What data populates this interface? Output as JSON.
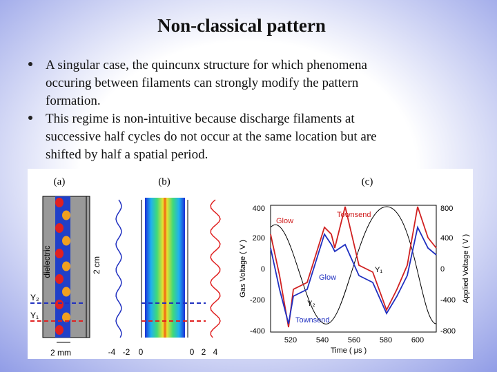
{
  "title": "Non-classical pattern",
  "bullets": [
    [
      "A singular case, the quincunx structure for which phenomena",
      "occuring between filaments can strongly modify the pattern",
      "formation."
    ],
    [
      "This regime is non-intuitive because discharge filaments at",
      "successive half cycles do not occur at the same location but are",
      "shifted by half a spatial period."
    ]
  ],
  "figure": {
    "panel_a": {
      "label": "(a)",
      "side_label": "dielectric",
      "scale_label": "2 cm",
      "y2_label": "Y₂",
      "y1_label": "Y₁",
      "width_label": "2 mm"
    },
    "panel_b": {
      "label": "(b)",
      "left_ticks": [
        "-4",
        "-2",
        "0"
      ],
      "right_ticks": [
        "0",
        "2",
        "4"
      ]
    },
    "panel_c": {
      "label": "(c)",
      "y_ticks": [
        "400",
        "200",
        "0",
        "-200",
        "-400"
      ],
      "y2_ticks": [
        "800",
        "400",
        "0",
        "-400",
        "-800"
      ],
      "x_ticks": [
        "520",
        "540",
        "560",
        "580",
        "600"
      ],
      "x_label": "Time ( μs )",
      "y_label": "Gas Voltage ( V )",
      "y2_label": "Applied Voltage ( V )",
      "annotations": [
        "Glow",
        "Townsend",
        "Y₁",
        "Glow",
        "Y₂",
        "Townsend"
      ]
    }
  }
}
